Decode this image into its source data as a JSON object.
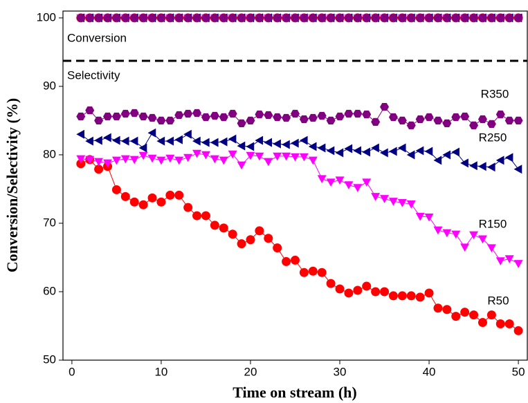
{
  "chart_data": {
    "type": "line",
    "xlabel": "Time on stream (h)",
    "ylabel": "Conversion/Selectivity (%)",
    "annotations": [
      "Conversion",
      "Selectivity"
    ],
    "xlim": [
      -1,
      51
    ],
    "xticks": [
      0,
      10,
      20,
      30,
      40,
      50
    ],
    "ylim": [
      50,
      101
    ],
    "yticks": [
      50,
      60,
      70,
      80,
      90,
      100
    ],
    "x": [
      1,
      2,
      3,
      4,
      5,
      6,
      7,
      8,
      9,
      10,
      11,
      12,
      13,
      14,
      15,
      16,
      17,
      18,
      19,
      20,
      21,
      22,
      23,
      24,
      25,
      26,
      27,
      28,
      29,
      30,
      31,
      32,
      33,
      34,
      35,
      36,
      37,
      38,
      39,
      40,
      41,
      42,
      43,
      44,
      45,
      46,
      47,
      48,
      49,
      50
    ],
    "series": [
      {
        "name": "R50",
        "color": "#ff0000",
        "marker": "circle",
        "values": [
          78.7,
          79.3,
          77.9,
          78.3,
          74.9,
          73.9,
          73.1,
          72.7,
          73.7,
          73.1,
          74.1,
          74.1,
          72.3,
          71.1,
          71.1,
          69.7,
          69.3,
          68.4,
          67.0,
          67.6,
          68.9,
          67.8,
          66.4,
          64.4,
          64.6,
          62.8,
          63.0,
          62.8,
          61.2,
          60.4,
          59.8,
          60.2,
          60.8,
          60.0,
          60.0,
          59.4,
          59.4,
          59.4,
          59.2,
          59.8,
          57.6,
          57.4,
          56.4,
          57.0,
          56.6,
          55.5,
          56.6,
          55.3,
          55.3,
          54.3
        ],
        "conversion": [
          100,
          100,
          100,
          100,
          100,
          100,
          100,
          100,
          100,
          100,
          100,
          100,
          100,
          100,
          100,
          100,
          100,
          100,
          100,
          100,
          100,
          100,
          100,
          100,
          100,
          100,
          100,
          100,
          100,
          100,
          100,
          100,
          100,
          100,
          100,
          100,
          100,
          100,
          100,
          100,
          100,
          100,
          100,
          100,
          100,
          100,
          100,
          100,
          100,
          100
        ]
      },
      {
        "name": "R150",
        "color": "#ff00ff",
        "marker": "down",
        "values": [
          79.4,
          79.3,
          79.0,
          78.8,
          79.2,
          79.4,
          79.3,
          79.9,
          79.5,
          79.2,
          79.5,
          79.2,
          79.6,
          80.2,
          80.0,
          79.4,
          79.2,
          80.1,
          78.5,
          79.9,
          79.8,
          79.0,
          79.8,
          79.8,
          79.7,
          79.7,
          79.2,
          76.5,
          76.0,
          76.3,
          75.6,
          75.2,
          76.0,
          73.9,
          73.6,
          73.2,
          73.0,
          72.8,
          71.0,
          70.9,
          69.0,
          68.6,
          68.4,
          66.5,
          68.3,
          67.7,
          66.4,
          64.5,
          64.8,
          64.1
        ],
        "conversion": [
          100,
          100,
          100,
          100,
          100,
          100,
          100,
          100,
          100,
          100,
          100,
          100,
          100,
          100,
          100,
          100,
          100,
          100,
          100,
          100,
          100,
          100,
          100,
          100,
          100,
          100,
          100,
          100,
          100,
          100,
          100,
          100,
          100,
          100,
          100,
          100,
          100,
          100,
          100,
          100,
          100,
          100,
          100,
          100,
          100,
          100,
          100,
          100,
          100,
          100
        ]
      },
      {
        "name": "R250",
        "color": "#000080",
        "marker": "left",
        "values": [
          83.0,
          82.0,
          82.1,
          82.5,
          82.1,
          82.0,
          82.0,
          81.0,
          83.2,
          82.0,
          82.0,
          82.2,
          83.0,
          82.0,
          81.8,
          81.8,
          81.9,
          82.3,
          81.3,
          81.2,
          82.1,
          81.8,
          81.6,
          81.5,
          81.7,
          82.1,
          81.2,
          81.0,
          80.6,
          80.3,
          80.9,
          80.6,
          80.4,
          81.0,
          80.3,
          80.5,
          81.0,
          80.0,
          80.6,
          80.5,
          79.2,
          80.0,
          80.4,
          78.8,
          78.4,
          78.3,
          78.2,
          79.2,
          79.6,
          77.9
        ],
        "conversion": [
          100,
          100,
          100,
          100,
          100,
          100,
          100,
          100,
          100,
          100,
          100,
          100,
          100,
          100,
          100,
          100,
          100,
          100,
          100,
          100,
          100,
          100,
          100,
          100,
          100,
          100,
          100,
          100,
          100,
          100,
          100,
          100,
          100,
          100,
          100,
          100,
          100,
          100,
          100,
          100,
          100,
          100,
          100,
          100,
          100,
          100,
          100,
          100,
          100,
          100
        ]
      },
      {
        "name": "R350",
        "color": "#800080",
        "marker": "hexagon",
        "values": [
          85.6,
          86.5,
          85.0,
          85.6,
          85.6,
          86.0,
          86.1,
          85.6,
          85.4,
          85.0,
          85.0,
          85.8,
          86.0,
          86.1,
          85.5,
          85.7,
          85.5,
          86.0,
          84.6,
          85.0,
          85.9,
          85.8,
          85.5,
          85.4,
          86.0,
          85.2,
          85.4,
          85.7,
          85.0,
          85.6,
          86.0,
          86.0,
          85.9,
          84.8,
          87.0,
          85.5,
          85.0,
          84.3,
          85.2,
          85.5,
          85.0,
          84.6,
          85.5,
          85.6,
          84.3,
          85.2,
          84.5,
          85.9,
          85.0,
          85.0
        ],
        "conversion": [
          100,
          100,
          100,
          100,
          100,
          100,
          100,
          100,
          100,
          100,
          100,
          100,
          100,
          100,
          100,
          100,
          100,
          100,
          100,
          100,
          100,
          100,
          100,
          100,
          100,
          100,
          100,
          100,
          100,
          100,
          100,
          100,
          100,
          100,
          100,
          100,
          100,
          100,
          100,
          100,
          100,
          100,
          100,
          100,
          100,
          100,
          100,
          100,
          100,
          100
        ]
      }
    ]
  }
}
